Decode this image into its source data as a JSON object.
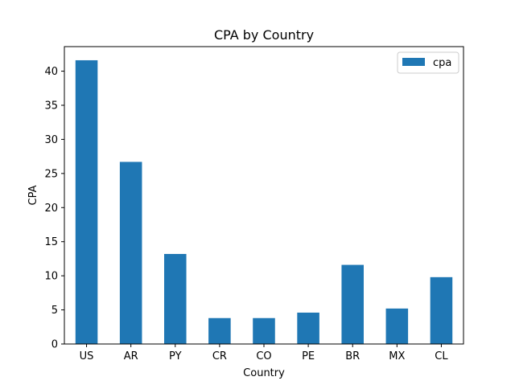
{
  "chart_data": {
    "type": "bar",
    "title": "CPA by Country",
    "xlabel": "Country",
    "ylabel": "CPA",
    "categories": [
      "US",
      "AR",
      "PY",
      "CR",
      "CO",
      "PE",
      "BR",
      "MX",
      "CL"
    ],
    "series": [
      {
        "name": "cpa",
        "color": "#1f77b4",
        "values": [
          41.6,
          26.7,
          13.2,
          3.8,
          3.8,
          4.6,
          11.6,
          5.2,
          9.8
        ]
      }
    ],
    "ylim": [
      0,
      43.6
    ],
    "yticks": [
      0,
      5,
      10,
      15,
      20,
      25,
      30,
      35,
      40
    ],
    "grid": false,
    "legend_position": "top-right"
  }
}
